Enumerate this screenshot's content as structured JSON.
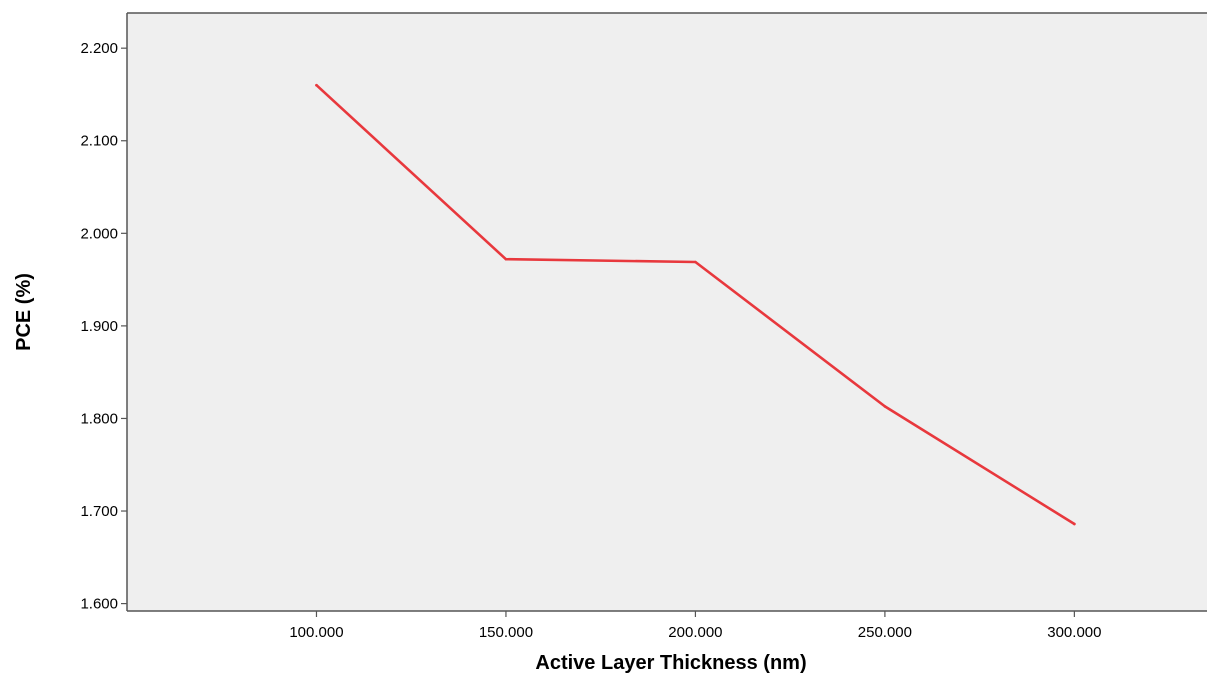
{
  "chart_data": {
    "type": "line",
    "xlabel": "Active Layer Thickness (nm)",
    "ylabel": "PCE (%)",
    "xlim": [
      50,
      335
    ],
    "ylim": [
      1.592,
      2.238
    ],
    "x_ticks": [
      100,
      150,
      200,
      250,
      300
    ],
    "x_tick_labels": [
      "100.000",
      "150.000",
      "200.000",
      "250.000",
      "300.000"
    ],
    "y_ticks": [
      1.6,
      1.7,
      1.8,
      1.9,
      2.0,
      2.1,
      2.2
    ],
    "y_tick_labels": [
      "1.600",
      "1.700",
      "1.800",
      "1.900",
      "2.000",
      "2.100",
      "2.200"
    ],
    "grid": false,
    "series": [
      {
        "x": [
          100,
          150,
          200,
          250,
          300
        ],
        "values": [
          2.16,
          1.972,
          1.969,
          1.813,
          1.686
        ],
        "color": "#e8383d"
      }
    ]
  },
  "colors": {
    "plot_background": "#efefef",
    "axis": "#555555",
    "line": "#e8383d"
  }
}
